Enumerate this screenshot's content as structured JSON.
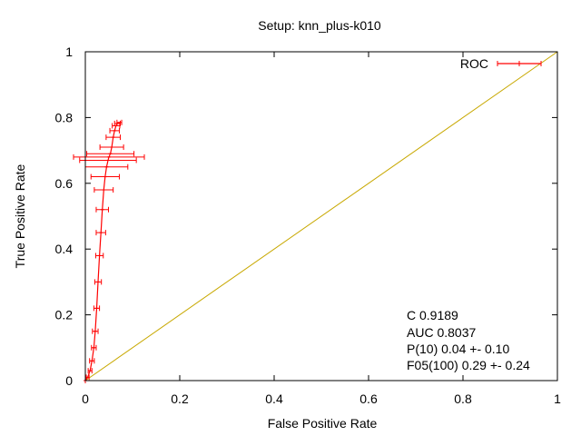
{
  "chart_data": {
    "type": "line",
    "title": "Setup: knn_plus-k010",
    "xlabel": "False Positive Rate",
    "ylabel": "True Positive Rate",
    "xlim": [
      0,
      1
    ],
    "ylim": [
      0,
      1
    ],
    "x_ticks": [
      "0",
      "0.2",
      "0.4",
      "0.6",
      "0.8",
      "1"
    ],
    "y_ticks": [
      "0",
      "0.2",
      "0.4",
      "0.6",
      "0.8",
      "1"
    ],
    "legend": {
      "position": "top-right",
      "label": "ROC"
    },
    "grid": false,
    "colors": {
      "roc": "#ff0000",
      "diagonal": "#c8a800"
    },
    "series": [
      {
        "name": "ROC",
        "style": "line-with-x-errorbars",
        "points": [
          {
            "x": 0.0,
            "y": 0.0,
            "xerr": 0.0
          },
          {
            "x": 0.005,
            "y": 0.01,
            "xerr": 0.003
          },
          {
            "x": 0.01,
            "y": 0.03,
            "xerr": 0.004
          },
          {
            "x": 0.014,
            "y": 0.06,
            "xerr": 0.005
          },
          {
            "x": 0.018,
            "y": 0.1,
            "xerr": 0.005
          },
          {
            "x": 0.021,
            "y": 0.15,
            "xerr": 0.006
          },
          {
            "x": 0.024,
            "y": 0.22,
            "xerr": 0.006
          },
          {
            "x": 0.027,
            "y": 0.3,
            "xerr": 0.007
          },
          {
            "x": 0.03,
            "y": 0.38,
            "xerr": 0.008
          },
          {
            "x": 0.033,
            "y": 0.45,
            "xerr": 0.01
          },
          {
            "x": 0.036,
            "y": 0.52,
            "xerr": 0.013
          },
          {
            "x": 0.039,
            "y": 0.58,
            "xerr": 0.02
          },
          {
            "x": 0.042,
            "y": 0.62,
            "xerr": 0.03
          },
          {
            "x": 0.045,
            "y": 0.65,
            "xerr": 0.045
          },
          {
            "x": 0.048,
            "y": 0.67,
            "xerr": 0.06
          },
          {
            "x": 0.05,
            "y": 0.68,
            "xerr": 0.075
          },
          {
            "x": 0.053,
            "y": 0.69,
            "xerr": 0.05
          },
          {
            "x": 0.056,
            "y": 0.71,
            "xerr": 0.025
          },
          {
            "x": 0.059,
            "y": 0.74,
            "xerr": 0.015
          },
          {
            "x": 0.062,
            "y": 0.76,
            "xerr": 0.01
          },
          {
            "x": 0.065,
            "y": 0.775,
            "xerr": 0.008
          },
          {
            "x": 0.068,
            "y": 0.782,
            "xerr": 0.006
          },
          {
            "x": 0.072,
            "y": 0.785,
            "xerr": 0.005
          }
        ]
      },
      {
        "name": "",
        "style": "diagonal-line",
        "points": [
          {
            "x": 0,
            "y": 0
          },
          {
            "x": 1,
            "y": 1
          }
        ]
      }
    ],
    "annotations": [
      "C 0.9189",
      "AUC 0.8037",
      "P(10) 0.04 +- 0.10",
      "F05(100) 0.29 +- 0.24"
    ]
  }
}
